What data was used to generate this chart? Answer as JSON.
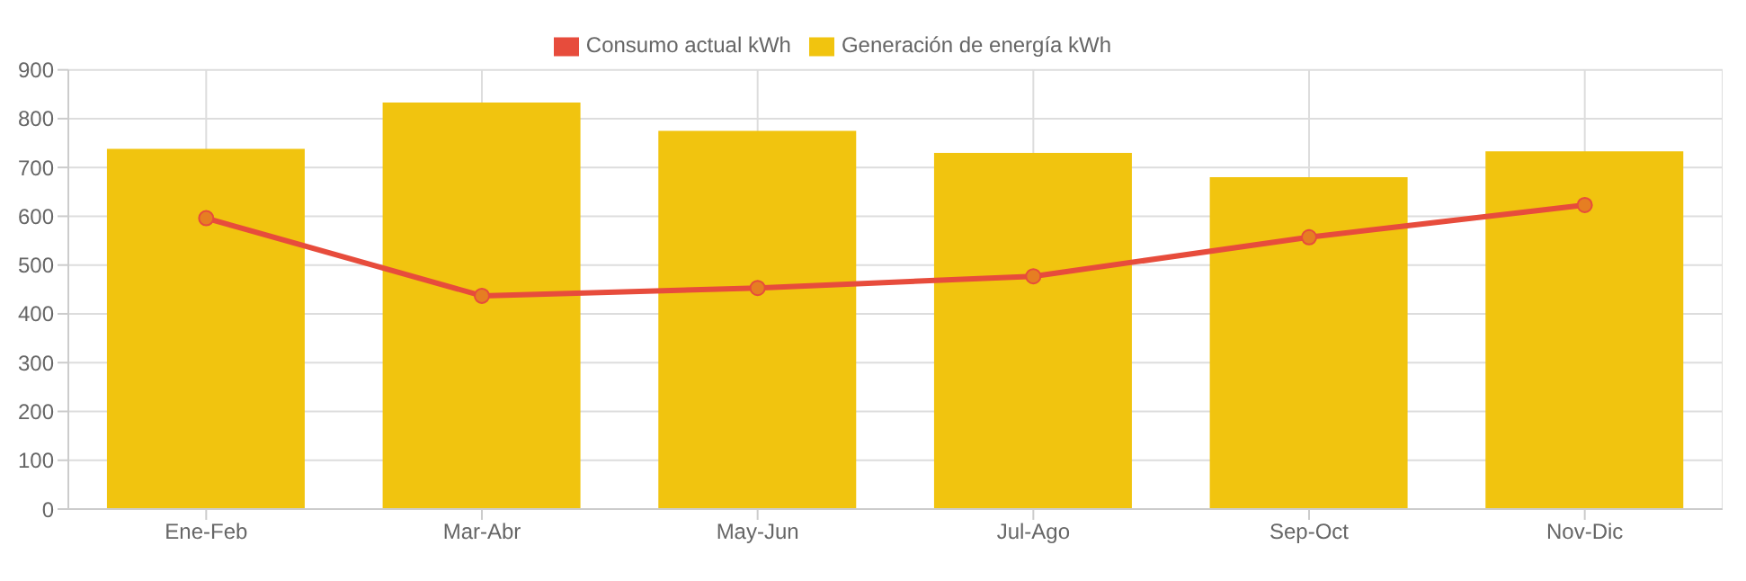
{
  "chart_data": {
    "type": "bar",
    "categories": [
      "Ene-Feb",
      "Mar-Abr",
      "May-Jun",
      "Jul-Ago",
      "Sep-Oct",
      "Nov-Dic"
    ],
    "series": [
      {
        "name": "Consumo actual kWh",
        "type": "line",
        "color": "#e74c3c",
        "values": [
          596,
          437,
          453,
          477,
          557,
          623
        ]
      },
      {
        "name": "Generación de energía kWh",
        "color": "#f1c40f",
        "values": [
          738,
          833,
          775,
          730,
          680,
          733
        ]
      }
    ],
    "ylim": [
      0,
      900
    ],
    "yticks": [
      0,
      100,
      200,
      300,
      400,
      500,
      600,
      700,
      800,
      900
    ],
    "grid": true,
    "legend": "top",
    "marker": "circle"
  }
}
